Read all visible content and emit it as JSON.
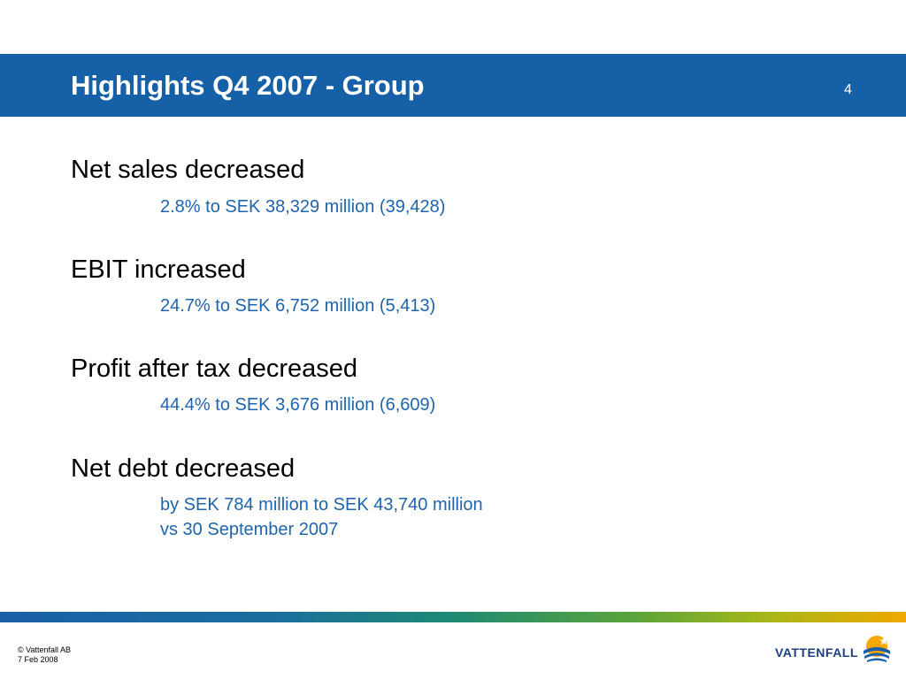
{
  "slide": {
    "title": "Highlights Q4 2007 - Group",
    "page_number": "4"
  },
  "highlights": [
    {
      "heading": "Net sales decreased",
      "details": [
        "2.8% to SEK 38,329 million (39,428)"
      ]
    },
    {
      "heading": "EBIT increased",
      "details": [
        "24.7% to SEK 6,752 million (5,413)"
      ]
    },
    {
      "heading": "Profit after tax decreased",
      "details": [
        "44.4% to SEK 3,676 million (6,609)"
      ]
    },
    {
      "heading": "Net debt decreased",
      "details": [
        "by SEK 784 million to SEK 43,740 million",
        "vs 30 September 2007"
      ]
    }
  ],
  "footer": {
    "copyright": "© Vattenfall AB",
    "date": "7 Feb 2008"
  },
  "logo": {
    "text": "VATTENFALL",
    "icon": "vattenfall-sun-wave-logo-icon"
  },
  "colors": {
    "title_bar": "#1660a8",
    "detail_text": "#1f64ad",
    "logo_text": "#1c3f82",
    "logo_sun": "#f5a800"
  }
}
